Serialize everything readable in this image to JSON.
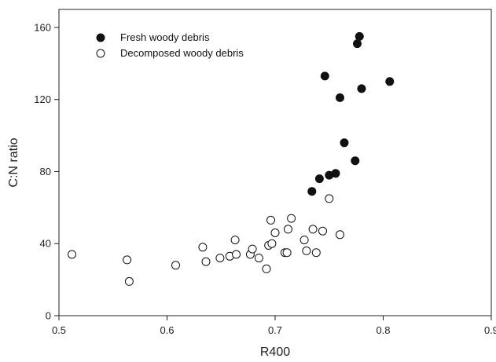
{
  "chart_data": {
    "type": "scatter",
    "title": "",
    "xlabel": "R400",
    "ylabel": "C:N ratio",
    "xlim": [
      0.5,
      0.9
    ],
    "ylim": [
      0,
      170
    ],
    "xticks": [
      0.5,
      0.6,
      0.7,
      0.8,
      0.9
    ],
    "xtick_labels": [
      "0.5",
      "0.6",
      "0.7",
      "0.8",
      "0.9"
    ],
    "yticks": [
      0,
      40,
      80,
      120,
      160
    ],
    "ytick_labels": [
      "0",
      "40",
      "80",
      "120",
      "160"
    ],
    "grid": false,
    "legend_position": "top-left",
    "series": [
      {
        "name": "Fresh woody debris",
        "marker": "filled-circle",
        "color": "#111111",
        "points": [
          [
            0.734,
            69
          ],
          [
            0.741,
            76
          ],
          [
            0.75,
            78
          ],
          [
            0.756,
            79
          ],
          [
            0.764,
            96
          ],
          [
            0.774,
            86
          ],
          [
            0.746,
            133
          ],
          [
            0.76,
            121
          ],
          [
            0.776,
            151
          ],
          [
            0.778,
            155
          ],
          [
            0.78,
            126
          ],
          [
            0.806,
            130
          ]
        ]
      },
      {
        "name": "Decomposed woody debris",
        "marker": "open-circle",
        "color": "#111111",
        "points": [
          [
            0.512,
            34
          ],
          [
            0.563,
            31
          ],
          [
            0.565,
            19
          ],
          [
            0.608,
            28
          ],
          [
            0.633,
            38
          ],
          [
            0.636,
            30
          ],
          [
            0.649,
            32
          ],
          [
            0.658,
            33
          ],
          [
            0.663,
            42
          ],
          [
            0.664,
            34
          ],
          [
            0.677,
            34
          ],
          [
            0.679,
            37
          ],
          [
            0.685,
            32
          ],
          [
            0.692,
            26
          ],
          [
            0.694,
            39
          ],
          [
            0.696,
            53
          ],
          [
            0.697,
            40
          ],
          [
            0.7,
            46
          ],
          [
            0.709,
            35
          ],
          [
            0.711,
            35
          ],
          [
            0.712,
            48
          ],
          [
            0.715,
            54
          ],
          [
            0.727,
            42
          ],
          [
            0.729,
            36
          ],
          [
            0.735,
            48
          ],
          [
            0.738,
            35
          ],
          [
            0.744,
            47
          ],
          [
            0.75,
            65
          ],
          [
            0.76,
            45
          ]
        ]
      }
    ]
  }
}
